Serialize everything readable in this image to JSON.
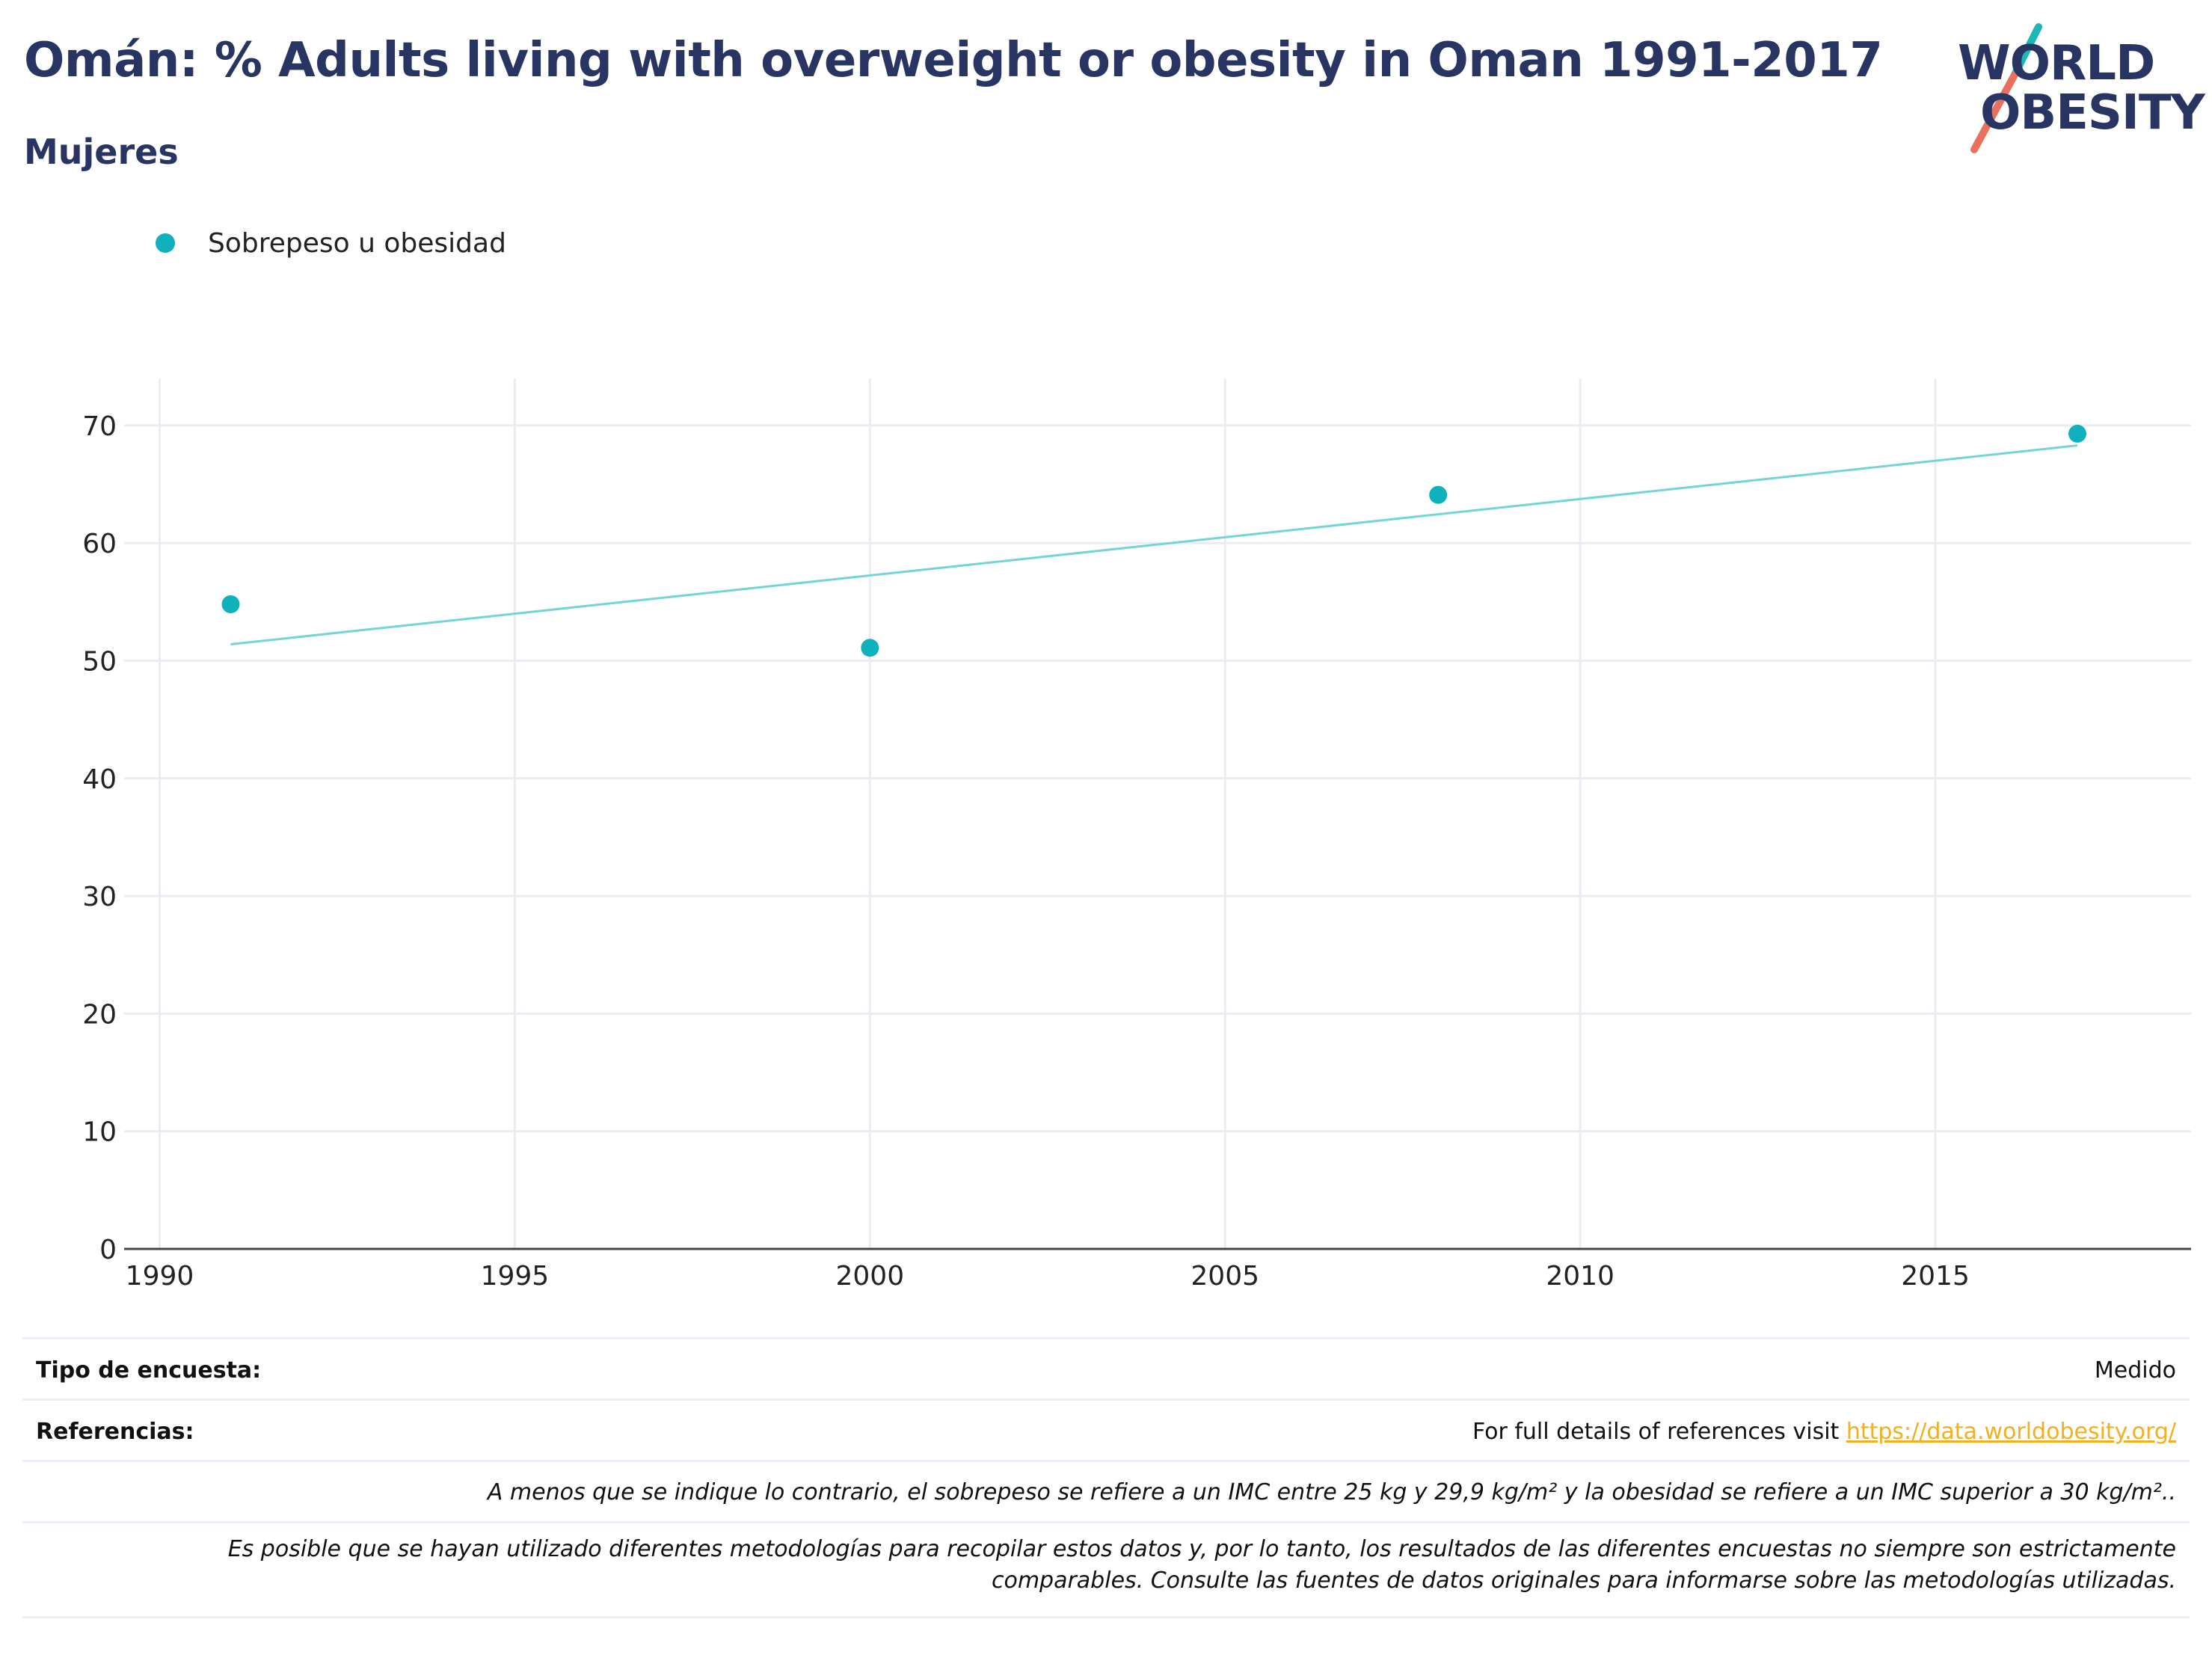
{
  "header": {
    "title": "Omán: % Adults living with overweight or obesity in Oman 1991-2017",
    "subtitle": "Mujeres"
  },
  "logo": {
    "line1": "WORLD",
    "line2": "OBESITY",
    "accent_teal": "#1cb8b8",
    "accent_red": "#e8705f"
  },
  "legend": {
    "label": "Sobrepeso u obesidad",
    "color": "#0fb1bc"
  },
  "chart_data": {
    "type": "scatter",
    "series": [
      {
        "name": "Sobrepeso u obesidad",
        "x": [
          1991,
          2000,
          2008,
          2017
        ],
        "y": [
          54.8,
          51.1,
          64.1,
          69.3
        ],
        "color": "#0fb1bc"
      }
    ],
    "trendline": {
      "x": [
        1991,
        2017
      ],
      "y": [
        51.4,
        68.3
      ],
      "color": "#74d4d8"
    },
    "xlim": [
      1989.5,
      2018.6
    ],
    "ylim": [
      0,
      74
    ],
    "xticks": [
      1990,
      1995,
      2000,
      2005,
      2010,
      2015
    ],
    "yticks": [
      0,
      10,
      20,
      30,
      40,
      50,
      60,
      70
    ],
    "grid": true
  },
  "footer": {
    "survey_label": "Tipo de encuesta:",
    "survey_value": "Medido",
    "refs_label": "Referencias:",
    "refs_text": "For full details of references visit ",
    "refs_link": "https://data.worldobesity.org/",
    "note1": "A menos que se indique lo contrario, el sobrepeso se refiere a un IMC entre 25 kg y 29,9 kg/m² y la obesidad se refiere a un IMC superior a 30 kg/m²..",
    "note2a": "Es posible que se hayan utilizado diferentes metodologías para recopilar estos datos y, por lo tanto, los resultados de las diferentes encuestas no siempre son estrictamente",
    "note2b": "comparables. Consulte las fuentes de datos originales para informarse sobre las metodologías utilizadas."
  }
}
